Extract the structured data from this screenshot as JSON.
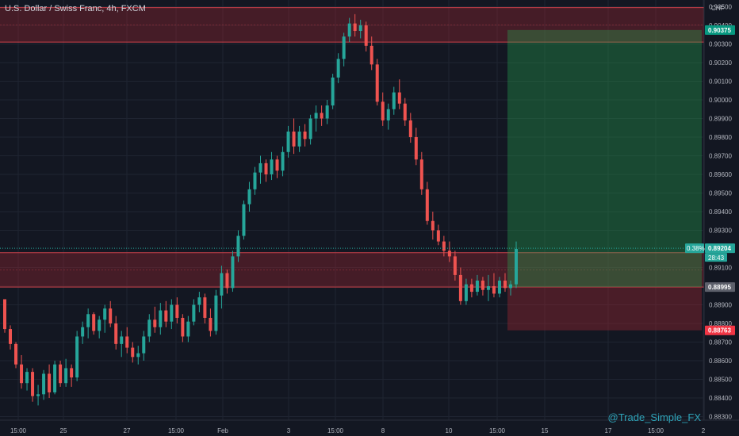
{
  "header": {
    "title": "U.S. Dollar / Swiss Franc, 4h, FXCM"
  },
  "price_axis": {
    "currency": "CHF",
    "ticks": [
      "0.90500",
      "0.90400",
      "0.90300",
      "0.90200",
      "0.90100",
      "0.90000",
      "0.89900",
      "0.89800",
      "0.89700",
      "0.89600",
      "0.89500",
      "0.89400",
      "0.89300",
      "0.89100",
      "0.89000",
      "0.88900",
      "0.88800",
      "0.88700",
      "0.88600",
      "0.88500",
      "0.88400",
      "0.88300"
    ],
    "tick_values": [
      0.905,
      0.904,
      0.903,
      0.902,
      0.901,
      0.9,
      0.899,
      0.898,
      0.897,
      0.896,
      0.895,
      0.894,
      0.893,
      0.891,
      0.89,
      0.889,
      0.888,
      0.887,
      0.886,
      0.885,
      0.884,
      0.883
    ]
  },
  "time_axis": {
    "labels": [
      "15:00",
      "25",
      "27",
      "15:00",
      "Feb",
      "3",
      "15:00",
      "8",
      "10",
      "15:00",
      "15",
      "17",
      "15:00",
      "2"
    ]
  },
  "markers": {
    "target": {
      "label": "0.90375",
      "value": 0.90375,
      "color": "#089981"
    },
    "current_pct": {
      "label": "0.38%"
    },
    "current_price": {
      "label": "0.89204",
      "value": 0.89204,
      "color": "#26a69a"
    },
    "countdown": {
      "label": "28:43"
    },
    "entry": {
      "label": "0.88995",
      "value": 0.88995,
      "color": "#5d606b"
    },
    "stop": {
      "label": "0.88763",
      "value": 0.88763,
      "color": "#f23645"
    }
  },
  "zones": {
    "resistance": {
      "top": 0.90495,
      "bottom": 0.9031
    },
    "support": {
      "top": 0.8918,
      "bottom": 0.88995
    }
  },
  "watermark": "@Trade_Simple_FX",
  "chart_data": {
    "type": "candlestick",
    "y_range": [
      0.88281,
      0.90536
    ],
    "colors": {
      "up": "#26a69a",
      "down": "#ef5350"
    },
    "candles": [
      [
        0.8893,
        0.8893,
        0.8875,
        0.8877
      ],
      [
        0.8877,
        0.8879,
        0.8866,
        0.8869
      ],
      [
        0.8869,
        0.887,
        0.8856,
        0.8858
      ],
      [
        0.8858,
        0.8863,
        0.8845,
        0.8848
      ],
      [
        0.8848,
        0.8856,
        0.8844,
        0.8854
      ],
      [
        0.8854,
        0.8856,
        0.8838,
        0.8841
      ],
      [
        0.8841,
        0.8847,
        0.8836,
        0.8842
      ],
      [
        0.8842,
        0.8855,
        0.8839,
        0.8853
      ],
      [
        0.8853,
        0.8858,
        0.884,
        0.8843
      ],
      [
        0.8843,
        0.886,
        0.8842,
        0.8858
      ],
      [
        0.8858,
        0.886,
        0.8846,
        0.8848
      ],
      [
        0.8848,
        0.8861,
        0.8846,
        0.8856
      ],
      [
        0.8856,
        0.8858,
        0.8846,
        0.8851
      ],
      [
        0.8851,
        0.8876,
        0.8849,
        0.8873
      ],
      [
        0.8873,
        0.8881,
        0.8869,
        0.8878
      ],
      [
        0.8878,
        0.8888,
        0.8872,
        0.8885
      ],
      [
        0.8885,
        0.8886,
        0.8874,
        0.8876
      ],
      [
        0.8876,
        0.8884,
        0.8872,
        0.8882
      ],
      [
        0.8882,
        0.889,
        0.8875,
        0.8888
      ],
      [
        0.8888,
        0.8892,
        0.8878,
        0.888
      ],
      [
        0.888,
        0.8884,
        0.8866,
        0.8869
      ],
      [
        0.8869,
        0.8876,
        0.8862,
        0.8873
      ],
      [
        0.8873,
        0.8878,
        0.8864,
        0.8867
      ],
      [
        0.8867,
        0.887,
        0.8859,
        0.8862
      ],
      [
        0.8862,
        0.8868,
        0.8858,
        0.8864
      ],
      [
        0.8864,
        0.8876,
        0.886,
        0.8873
      ],
      [
        0.8873,
        0.8885,
        0.887,
        0.8882
      ],
      [
        0.8882,
        0.8889,
        0.8875,
        0.8878
      ],
      [
        0.8878,
        0.8891,
        0.8874,
        0.8887
      ],
      [
        0.8887,
        0.8892,
        0.8878,
        0.8881
      ],
      [
        0.8881,
        0.8893,
        0.8877,
        0.889
      ],
      [
        0.889,
        0.8894,
        0.888,
        0.8883
      ],
      [
        0.8883,
        0.8885,
        0.887,
        0.8873
      ],
      [
        0.8873,
        0.8884,
        0.887,
        0.8881
      ],
      [
        0.8881,
        0.8893,
        0.8879,
        0.889
      ],
      [
        0.889,
        0.8897,
        0.8886,
        0.8894
      ],
      [
        0.8894,
        0.8896,
        0.888,
        0.8883
      ],
      [
        0.8883,
        0.8888,
        0.8873,
        0.8876
      ],
      [
        0.8876,
        0.8898,
        0.8874,
        0.8895
      ],
      [
        0.8895,
        0.8911,
        0.8888,
        0.8907
      ],
      [
        0.8907,
        0.8909,
        0.8896,
        0.8899
      ],
      [
        0.8899,
        0.8919,
        0.8897,
        0.8916
      ],
      [
        0.8916,
        0.893,
        0.8913,
        0.8927
      ],
      [
        0.8927,
        0.8946,
        0.8925,
        0.8944
      ],
      [
        0.8944,
        0.8956,
        0.894,
        0.8952
      ],
      [
        0.8952,
        0.8964,
        0.8949,
        0.8961
      ],
      [
        0.8961,
        0.897,
        0.8955,
        0.8966
      ],
      [
        0.8966,
        0.8968,
        0.8956,
        0.896
      ],
      [
        0.896,
        0.8972,
        0.8957,
        0.8968
      ],
      [
        0.8968,
        0.897,
        0.8958,
        0.8962
      ],
      [
        0.8962,
        0.8975,
        0.8959,
        0.8972
      ],
      [
        0.8972,
        0.8986,
        0.8969,
        0.8983
      ],
      [
        0.8983,
        0.899,
        0.8971,
        0.8975
      ],
      [
        0.8975,
        0.8986,
        0.8972,
        0.8983
      ],
      [
        0.8983,
        0.8987,
        0.8975,
        0.8979
      ],
      [
        0.8979,
        0.8992,
        0.8976,
        0.899
      ],
      [
        0.899,
        0.8997,
        0.8983,
        0.8993
      ],
      [
        0.8993,
        0.8997,
        0.8986,
        0.899
      ],
      [
        0.899,
        0.9,
        0.8987,
        0.8997
      ],
      [
        0.8997,
        0.9014,
        0.8995,
        0.9012
      ],
      [
        0.9012,
        0.9025,
        0.9009,
        0.9022
      ],
      [
        0.9022,
        0.9036,
        0.9018,
        0.9034
      ],
      [
        0.9034,
        0.9044,
        0.9031,
        0.9041
      ],
      [
        0.9041,
        0.9046,
        0.9034,
        0.9037
      ],
      [
        0.9037,
        0.9043,
        0.9033,
        0.904
      ],
      [
        0.904,
        0.9042,
        0.9026,
        0.9029
      ],
      [
        0.9029,
        0.9034,
        0.9016,
        0.9019
      ],
      [
        0.9019,
        0.9022,
        0.8997,
        0.8999
      ],
      [
        0.8999,
        0.9004,
        0.8986,
        0.8989
      ],
      [
        0.8989,
        0.8998,
        0.8984,
        0.8995
      ],
      [
        0.8995,
        0.9007,
        0.8992,
        0.9004
      ],
      [
        0.9004,
        0.9011,
        0.8995,
        0.8998
      ],
      [
        0.8998,
        0.9001,
        0.8986,
        0.8989
      ],
      [
        0.8989,
        0.8993,
        0.8977,
        0.898
      ],
      [
        0.898,
        0.8985,
        0.8965,
        0.8968
      ],
      [
        0.8968,
        0.8972,
        0.8949,
        0.8952
      ],
      [
        0.8952,
        0.8956,
        0.8933,
        0.8935
      ],
      [
        0.8935,
        0.894,
        0.8925,
        0.893
      ],
      [
        0.893,
        0.8933,
        0.8922,
        0.8924
      ],
      [
        0.8924,
        0.8927,
        0.8916,
        0.8919
      ],
      [
        0.8919,
        0.8924,
        0.8913,
        0.8916
      ],
      [
        0.8916,
        0.8919,
        0.8903,
        0.8906
      ],
      [
        0.8906,
        0.891,
        0.889,
        0.8892
      ],
      [
        0.8892,
        0.8904,
        0.889,
        0.8901
      ],
      [
        0.8901,
        0.8904,
        0.8894,
        0.8897
      ],
      [
        0.8897,
        0.8906,
        0.8895,
        0.8903
      ],
      [
        0.8903,
        0.8905,
        0.8895,
        0.8898
      ],
      [
        0.8898,
        0.8906,
        0.8892,
        0.89
      ],
      [
        0.89,
        0.8907,
        0.8894,
        0.8896
      ],
      [
        0.8896,
        0.8905,
        0.8894,
        0.8903
      ],
      [
        0.8903,
        0.8907,
        0.8897,
        0.8899
      ],
      [
        0.8899,
        0.8903,
        0.8895,
        0.8901
      ],
      [
        0.8901,
        0.8924,
        0.8899,
        0.892
      ]
    ]
  }
}
